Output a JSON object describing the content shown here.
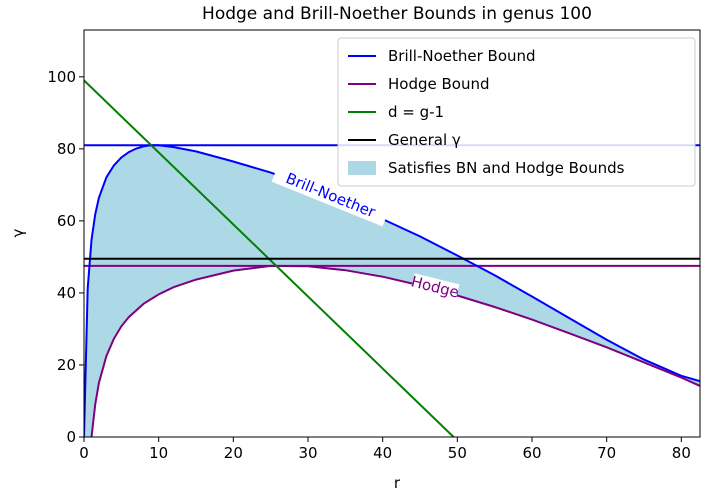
{
  "chart_data": {
    "type": "line",
    "title": "Hodge and Brill-Noether Bounds in genus 100",
    "xlabel": "r",
    "ylabel": "γ",
    "xlim": [
      0,
      82.5
    ],
    "ylim": [
      0,
      113
    ],
    "xticks": [
      "0",
      "10",
      "20",
      "30",
      "40",
      "50",
      "60",
      "70",
      "80"
    ],
    "yticks": [
      "0",
      "20",
      "40",
      "60",
      "80",
      "100"
    ],
    "grid": false,
    "legend_position": "top-right",
    "series": [
      {
        "name": "Brill-Noether Bound",
        "color": "#0000ff",
        "x": [
          0,
          0.5,
          1,
          1.5,
          2,
          3,
          4,
          5,
          6,
          7,
          8,
          9,
          10,
          12,
          15,
          20,
          25,
          30,
          35,
          40,
          45,
          50,
          55,
          60,
          65,
          70,
          75,
          80,
          82.5
        ],
        "y": [
          0,
          41.3,
          54.7,
          61.8,
          66.4,
          72.1,
          75.4,
          77.6,
          79.1,
          80.1,
          80.7,
          81.0,
          81.0,
          80.5,
          79.3,
          76.5,
          73.4,
          69.6,
          65.2,
          60.5,
          55.7,
          50.4,
          44.9,
          39.0,
          33.0,
          27.0,
          21.5,
          17.0,
          15.5
        ]
      },
      {
        "name": "Hodge Bound",
        "color": "#800080",
        "x": [
          1,
          1.5,
          2,
          3,
          4,
          5,
          6,
          8,
          10,
          12,
          15,
          20,
          25,
          30,
          35,
          40,
          45,
          50,
          55,
          60,
          65,
          70,
          75,
          80,
          82.5
        ],
        "y": [
          0,
          9,
          15,
          22.5,
          27.3,
          30.7,
          33.3,
          37.0,
          39.6,
          41.6,
          43.7,
          46.2,
          47.5,
          47.4,
          46.3,
          44.5,
          42.1,
          39.3,
          36.1,
          32.6,
          28.8,
          24.9,
          20.7,
          16.5,
          14.2
        ]
      },
      {
        "name": "d = g-1",
        "color": "#008000",
        "x": [
          0,
          49.5
        ],
        "y": [
          99,
          0
        ]
      },
      {
        "name": "General γ",
        "color": "#000000",
        "x": [
          0,
          82.5
        ],
        "y": [
          49.5,
          49.5
        ]
      }
    ],
    "reference_lines": [
      {
        "color": "#0000ff",
        "y": 81
      },
      {
        "color": "#800080",
        "y": 47.5
      }
    ],
    "fill": {
      "name": "Satisfies BN and Hodge Bounds",
      "color": "#add8e6",
      "between": [
        "Brill-Noether Bound",
        "Hodge Bound"
      ]
    },
    "annotations": [
      {
        "text": "Brill-Noether",
        "color": "#0000ff",
        "x": 33,
        "y": 67,
        "angle": 22
      },
      {
        "text": "Hodge",
        "color": "#800080",
        "x": 47,
        "y": 41.5,
        "angle": 14
      }
    ]
  }
}
